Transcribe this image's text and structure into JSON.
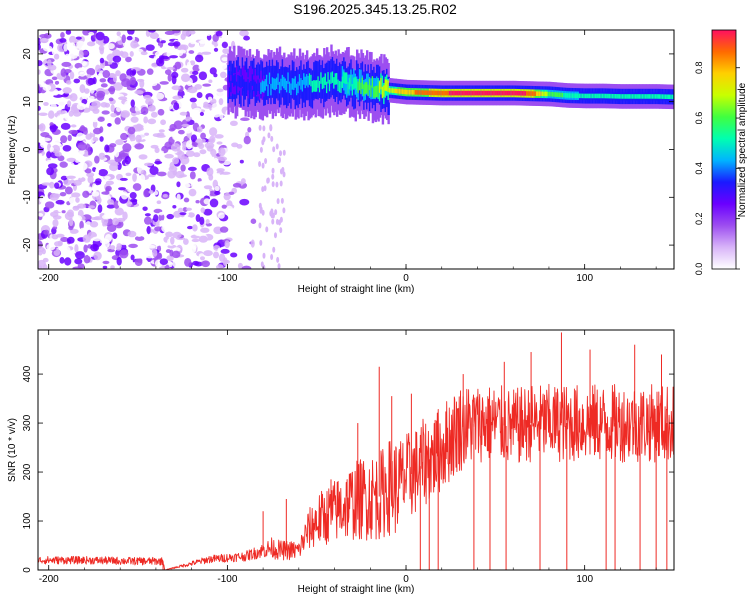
{
  "title": "S196.2025.345.13.25.R02",
  "chart_data": [
    {
      "type": "heatmap",
      "xlabel": "Height of straight line (km)",
      "ylabel": "Frequency (Hz)",
      "xlim": [
        -206,
        150
      ],
      "ylim": [
        -25,
        25
      ],
      "x_ticks": [
        -200,
        -100,
        0,
        100
      ],
      "x_tick_labels": [
        "-200",
        "-100",
        "0",
        "100"
      ],
      "y_ticks": [
        -20,
        -10,
        0,
        10,
        20
      ],
      "y_tick_labels": [
        "-20",
        "-10",
        "0",
        "10",
        "20"
      ],
      "colorbar": {
        "label": "Normalized spectral amplitude",
        "range": [
          0,
          0.95
        ],
        "ticks": [
          0,
          0.2,
          0.4,
          0.6,
          0.8
        ],
        "tick_labels": [
          "0.0",
          "0.2",
          "0.4",
          "0.6",
          "0.8"
        ],
        "colors": [
          "#ffffff",
          "#d8b4f8",
          "#9d4ef0",
          "#6a00ff",
          "#1a1aff",
          "#00b4ff",
          "#00ffb0",
          "#40ff40",
          "#c8ff00",
          "#ffd000",
          "#ff6a00",
          "#ff1060"
        ]
      },
      "ridge": {
        "x": [
          -100,
          -90,
          -80,
          -70,
          -60,
          -50,
          -40,
          -30,
          -20,
          -10,
          0,
          10,
          20,
          30,
          40,
          50,
          60,
          70,
          80,
          90,
          100,
          110,
          120,
          130,
          140,
          150
        ],
        "freq": [
          14,
          14.2,
          13.5,
          14,
          13.5,
          13.8,
          14.5,
          13.6,
          13,
          12.4,
          12,
          11.9,
          11.8,
          11.8,
          11.8,
          11.8,
          11.8,
          11.7,
          11.6,
          11.3,
          11.2,
          11.2,
          11.1,
          11.1,
          11.1,
          11
        ],
        "amplitude": [
          0.3,
          0.35,
          0.4,
          0.45,
          0.45,
          0.5,
          0.5,
          0.55,
          0.6,
          0.7,
          0.8,
          0.85,
          0.9,
          0.92,
          0.93,
          0.93,
          0.92,
          0.9,
          0.6,
          0.55,
          0.5,
          0.5,
          0.5,
          0.5,
          0.5,
          0.5
        ]
      },
      "noise_region": {
        "x_from": -206,
        "x_to": -95,
        "amplitude_range": [
          0.02,
          0.3
        ]
      }
    },
    {
      "type": "line",
      "xlabel": "Height of straight line (km)",
      "ylabel": "SNR (10 * v/v)",
      "xlim": [
        -206,
        150
      ],
      "ylim": [
        0,
        490
      ],
      "x_ticks": [
        -200,
        -100,
        0,
        100
      ],
      "x_tick_labels": [
        "-200",
        "-100",
        "0",
        "100"
      ],
      "y_ticks": [
        0,
        100,
        200,
        300,
        400
      ],
      "y_tick_labels": [
        "0",
        "100",
        "200",
        "300",
        "400"
      ],
      "color": "#ee2a24",
      "series": [
        {
          "name": "SNR",
          "x": [
            -206,
            -180,
            -150,
            -136,
            -135,
            -110,
            -90,
            -80,
            -75,
            -70,
            -60,
            -55,
            -50,
            -40,
            -30,
            -20,
            -15,
            -10,
            -5,
            0,
            5,
            10,
            15,
            20,
            25,
            30,
            40,
            50,
            60,
            70,
            80,
            90,
            100,
            110,
            120,
            130,
            140,
            150
          ],
          "base": [
            20,
            20,
            18,
            18,
            0,
            22,
            28,
            40,
            45,
            40,
            40,
            80,
            100,
            120,
            140,
            150,
            150,
            170,
            170,
            190,
            200,
            220,
            230,
            250,
            270,
            290,
            300,
            300,
            290,
            300,
            300,
            300,
            300,
            300,
            300,
            300,
            300,
            300
          ],
          "amp": [
            8,
            8,
            8,
            8,
            0,
            8,
            10,
            15,
            22,
            20,
            20,
            40,
            55,
            65,
            80,
            90,
            90,
            100,
            100,
            90,
            90,
            90,
            90,
            90,
            90,
            90,
            80,
            80,
            80,
            80,
            80,
            80,
            80,
            80,
            80,
            80,
            80,
            80
          ]
        }
      ],
      "spikes": [
        {
          "x": -80,
          "y": 120
        },
        {
          "x": -67,
          "y": 145
        },
        {
          "x": -42,
          "y": 185
        },
        {
          "x": -27,
          "y": 300
        },
        {
          "x": -15,
          "y": 415
        },
        {
          "x": -8,
          "y": 355
        },
        {
          "x": 3,
          "y": 360
        },
        {
          "x": 17,
          "y": 305
        },
        {
          "x": 32,
          "y": 400
        },
        {
          "x": 55,
          "y": 425
        },
        {
          "x": 70,
          "y": 445
        },
        {
          "x": 87,
          "y": 485
        },
        {
          "x": 103,
          "y": 450
        },
        {
          "x": 128,
          "y": 460
        },
        {
          "x": 143,
          "y": 440
        }
      ],
      "dropouts": [
        {
          "x": -136,
          "y": 0
        },
        {
          "x": 8,
          "y": 0
        },
        {
          "x": 13,
          "y": 0
        },
        {
          "x": 18,
          "y": 0
        },
        {
          "x": 38,
          "y": 0
        },
        {
          "x": 47,
          "y": 0
        },
        {
          "x": 56,
          "y": 0
        },
        {
          "x": 75,
          "y": 0
        },
        {
          "x": 90,
          "y": 0
        },
        {
          "x": 112,
          "y": 0
        },
        {
          "x": 117,
          "y": 0
        },
        {
          "x": 131,
          "y": 0
        },
        {
          "x": 140,
          "y": 0
        },
        {
          "x": 146,
          "y": 0
        }
      ]
    }
  ]
}
